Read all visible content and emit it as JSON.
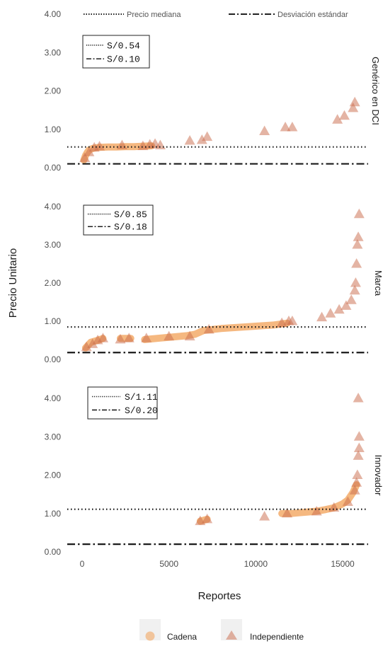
{
  "chart_data": {
    "type": "scatter",
    "xlabel": "Reportes",
    "ylabel": "Precio Unitario",
    "xlim": [
      -800,
      17000
    ],
    "x_ticks": [
      "0",
      "5000",
      "10000",
      "15000"
    ],
    "y_ticks": [
      "0.00",
      "1.00",
      "2.00",
      "3.00",
      "4.00"
    ],
    "ylim": [
      -0.1,
      4.2
    ],
    "grid": false,
    "line_legend": [
      {
        "label": "Precio mediana",
        "style": "dotted"
      },
      {
        "label": "Desviación estándar",
        "style": "dashdot"
      }
    ],
    "point_legend": [
      {
        "label": "Cadena",
        "shape": "circle",
        "color": "#f2a055"
      },
      {
        "label": "Independiente",
        "shape": "triangle",
        "color": "#c9694a"
      }
    ],
    "panels": [
      {
        "name": "Genérico en DCI",
        "median": 0.54,
        "sd": 0.1,
        "median_label": "S/0.54",
        "sd_label": "S/0.10",
        "chain_segments": [
          {
            "x": [
              100,
              200,
              300,
              400,
              600,
              800,
              1000,
              1500,
              2000,
              2500,
              3000,
              3500,
              4000
            ],
            "y": [
              0.2,
              0.32,
              0.4,
              0.46,
              0.5,
              0.52,
              0.53,
              0.54,
              0.54,
              0.55,
              0.55,
              0.56,
              0.57
            ]
          }
        ],
        "independent_points": [
          {
            "x": 150,
            "y": 0.25
          },
          {
            "x": 400,
            "y": 0.4
          },
          {
            "x": 700,
            "y": 0.52
          },
          {
            "x": 1000,
            "y": 0.55
          },
          {
            "x": 2300,
            "y": 0.58
          },
          {
            "x": 3500,
            "y": 0.56
          },
          {
            "x": 3900,
            "y": 0.6
          },
          {
            "x": 4200,
            "y": 0.62
          },
          {
            "x": 4500,
            "y": 0.58
          },
          {
            "x": 6200,
            "y": 0.7
          },
          {
            "x": 6900,
            "y": 0.72
          },
          {
            "x": 7200,
            "y": 0.8
          },
          {
            "x": 10500,
            "y": 0.95
          },
          {
            "x": 11700,
            "y": 1.05
          },
          {
            "x": 12100,
            "y": 1.05
          },
          {
            "x": 14700,
            "y": 1.25
          },
          {
            "x": 15100,
            "y": 1.35
          },
          {
            "x": 15600,
            "y": 1.55
          },
          {
            "x": 15700,
            "y": 1.7
          }
        ]
      },
      {
        "name": "Marca",
        "median": 0.85,
        "sd": 0.18,
        "median_label": "S/0.85",
        "sd_label": "S/0.18",
        "chain_segments": [
          {
            "x": [
              200,
              500,
              900,
              1200
            ],
            "y": [
              0.3,
              0.45,
              0.5,
              0.55
            ]
          },
          {
            "x": [
              2200,
              2800
            ],
            "y": [
              0.55,
              0.55
            ]
          },
          {
            "x": [
              3600,
              4500,
              5500,
              6000,
              6500,
              7000,
              8000,
              9000,
              10000,
              11000,
              11800
            ],
            "y": [
              0.52,
              0.56,
              0.6,
              0.62,
              0.66,
              0.76,
              0.81,
              0.84,
              0.87,
              0.9,
              0.95
            ]
          }
        ],
        "independent_points": [
          {
            "x": 250,
            "y": 0.32
          },
          {
            "x": 600,
            "y": 0.4
          },
          {
            "x": 900,
            "y": 0.5
          },
          {
            "x": 1200,
            "y": 0.55
          },
          {
            "x": 2200,
            "y": 0.52
          },
          {
            "x": 2700,
            "y": 0.55
          },
          {
            "x": 3700,
            "y": 0.55
          },
          {
            "x": 5000,
            "y": 0.6
          },
          {
            "x": 6200,
            "y": 0.6
          },
          {
            "x": 7300,
            "y": 0.78
          },
          {
            "x": 11500,
            "y": 0.95
          },
          {
            "x": 11900,
            "y": 1.0
          },
          {
            "x": 12100,
            "y": 1.0
          },
          {
            "x": 13800,
            "y": 1.1
          },
          {
            "x": 14300,
            "y": 1.2
          },
          {
            "x": 14800,
            "y": 1.3
          },
          {
            "x": 15200,
            "y": 1.4
          },
          {
            "x": 15500,
            "y": 1.55
          },
          {
            "x": 15700,
            "y": 1.8
          },
          {
            "x": 15750,
            "y": 2.0
          },
          {
            "x": 15800,
            "y": 2.5
          },
          {
            "x": 15850,
            "y": 3.0
          },
          {
            "x": 15900,
            "y": 3.2
          },
          {
            "x": 15950,
            "y": 3.8
          }
        ]
      },
      {
        "name": "Innovador",
        "median": 1.11,
        "sd": 0.2,
        "median_label": "S/1.11",
        "sd_label": "S/0.20",
        "chain_segments": [
          {
            "x": [
              6800,
              7200
            ],
            "y": [
              0.8,
              0.85
            ]
          },
          {
            "x": [
              11500,
              12000,
              12500,
              13000,
              13500,
              14000,
              14500,
              15000,
              15300,
              15600,
              15800
            ],
            "y": [
              1.0,
              1.0,
              1.02,
              1.04,
              1.06,
              1.1,
              1.15,
              1.25,
              1.35,
              1.55,
              1.75
            ]
          }
        ],
        "independent_points": [
          {
            "x": 6800,
            "y": 0.8
          },
          {
            "x": 7200,
            "y": 0.85
          },
          {
            "x": 10500,
            "y": 0.92
          },
          {
            "x": 11800,
            "y": 1.0
          },
          {
            "x": 13500,
            "y": 1.05
          },
          {
            "x": 14500,
            "y": 1.15
          },
          {
            "x": 15300,
            "y": 1.3
          },
          {
            "x": 15700,
            "y": 1.6
          },
          {
            "x": 15800,
            "y": 1.8
          },
          {
            "x": 15850,
            "y": 2.0
          },
          {
            "x": 15900,
            "y": 2.5
          },
          {
            "x": 15950,
            "y": 2.7
          },
          {
            "x": 15950,
            "y": 3.0
          },
          {
            "x": 15900,
            "y": 4.0
          }
        ]
      }
    ]
  }
}
